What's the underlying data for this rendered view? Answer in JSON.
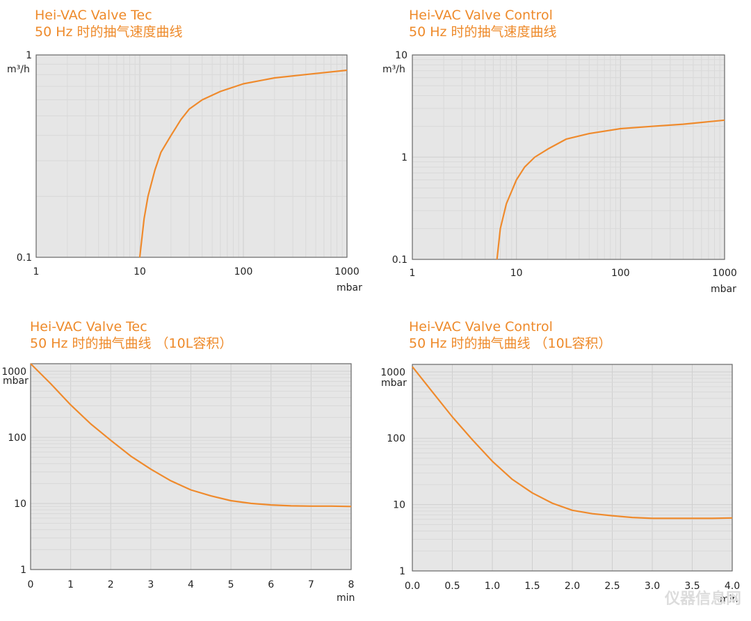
{
  "watermark": "仪器信息网",
  "colors": {
    "curve": "#ef8a2c",
    "plot_bg": "#e6e6e6",
    "grid_major": "#cfcfcf",
    "grid_minor": "#d9d9d9",
    "frame": "#666666",
    "title": "#ee8a2a"
  },
  "chart_data": [
    {
      "id": "tl",
      "type": "line",
      "title": "Hei-VAC Valve Tec",
      "subtitle": "50 Hz 时的抽气速度曲线",
      "x_scale": "log",
      "y_scale": "log",
      "xlim": [
        1,
        1000
      ],
      "ylim": [
        0.1,
        1
      ],
      "x_ticks": [
        "1",
        "10",
        "100",
        "1000"
      ],
      "y_ticks": [
        "0.1",
        "1"
      ],
      "x_unit": "mbar",
      "y_unit": "m³/h",
      "grid": true,
      "x": [
        10,
        11,
        12,
        14,
        16,
        20,
        25,
        30,
        40,
        60,
        100,
        200,
        400,
        1000
      ],
      "y": [
        0.1,
        0.155,
        0.2,
        0.27,
        0.33,
        0.4,
        0.48,
        0.54,
        0.6,
        0.66,
        0.72,
        0.77,
        0.8,
        0.84
      ]
    },
    {
      "id": "tr",
      "type": "line",
      "title": "Hei-VAC Valve Control",
      "subtitle": "50 Hz 时的抽气速度曲线",
      "x_scale": "log",
      "y_scale": "log",
      "xlim": [
        1,
        1000
      ],
      "ylim": [
        0.1,
        10
      ],
      "x_ticks": [
        "1",
        "10",
        "100",
        "1000"
      ],
      "y_ticks": [
        "0.1",
        "1",
        "10"
      ],
      "x_unit": "mbar",
      "y_unit": "m³/h",
      "grid": true,
      "x": [
        6.5,
        7,
        8,
        10,
        12,
        15,
        20,
        30,
        50,
        100,
        200,
        400,
        1000
      ],
      "y": [
        0.1,
        0.2,
        0.35,
        0.6,
        0.8,
        1.0,
        1.2,
        1.5,
        1.7,
        1.9,
        2.0,
        2.1,
        2.3
      ]
    },
    {
      "id": "bl",
      "type": "line",
      "title": "Hei-VAC Valve Tec",
      "subtitle": "50 Hz 时的抽气曲线 （10L容积）",
      "x_scale": "linear",
      "y_scale": "log",
      "xlim": [
        0,
        8
      ],
      "ylim": [
        1,
        1300
      ],
      "x_ticks": [
        "0",
        "1",
        "2",
        "3",
        "4",
        "5",
        "6",
        "7",
        "8"
      ],
      "y_ticks": [
        "1",
        "10",
        "100",
        "1000"
      ],
      "x_unit": "min",
      "y_unit": "mbar",
      "grid": true,
      "x": [
        0,
        0.5,
        1,
        1.5,
        2,
        2.5,
        3,
        3.5,
        4,
        4.5,
        5,
        5.5,
        6,
        6.5,
        7,
        7.5,
        8
      ],
      "y": [
        1300,
        650,
        310,
        160,
        90,
        52,
        33,
        22,
        16,
        13,
        11,
        10,
        9.5,
        9.2,
        9.1,
        9.1,
        9
      ]
    },
    {
      "id": "br",
      "type": "line",
      "title": "Hei-VAC Valve Control",
      "subtitle": "50 Hz 时的抽气曲线 （10L容积）",
      "x_scale": "linear",
      "y_scale": "log",
      "xlim": [
        0,
        4
      ],
      "ylim": [
        1,
        1300
      ],
      "x_ticks": [
        "0.0",
        "0.5",
        "1.0",
        "1.5",
        "2.0",
        "2.5",
        "3.0",
        "3.5",
        "4.0"
      ],
      "y_ticks": [
        "1",
        "10",
        "100",
        "1000"
      ],
      "x_unit": "min",
      "y_unit": "mbar",
      "grid": true,
      "x": [
        0,
        0.25,
        0.5,
        0.75,
        1.0,
        1.25,
        1.5,
        1.75,
        2.0,
        2.25,
        2.5,
        2.75,
        3.0,
        3.25,
        3.5,
        3.75,
        4.0
      ],
      "y": [
        1200,
        500,
        210,
        95,
        45,
        24,
        15,
        10.5,
        8.2,
        7.3,
        6.8,
        6.4,
        6.2,
        6.2,
        6.2,
        6.2,
        6.3
      ]
    }
  ]
}
